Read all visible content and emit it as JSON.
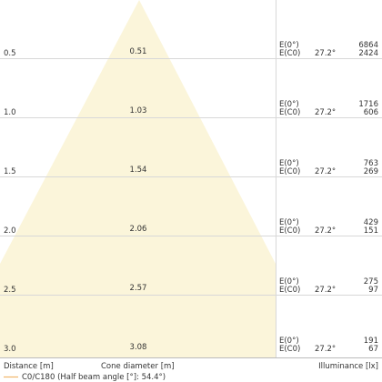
{
  "rows": [
    {
      "distance": "0.5",
      "diameter": "0.51",
      "e0_label": "E(0°)",
      "ec0_label": "E(C0)",
      "angle": "27.2°",
      "e0": "6864",
      "ec0": "2424"
    },
    {
      "distance": "1.0",
      "diameter": "1.03",
      "e0_label": "E(0°)",
      "ec0_label": "E(C0)",
      "angle": "27.2°",
      "e0": "1716",
      "ec0": "606"
    },
    {
      "distance": "1.5",
      "diameter": "1.54",
      "e0_label": "E(0°)",
      "ec0_label": "E(C0)",
      "angle": "27.2°",
      "e0": "763",
      "ec0": "269"
    },
    {
      "distance": "2.0",
      "diameter": "2.06",
      "e0_label": "E(0°)",
      "ec0_label": "E(C0)",
      "angle": "27.2°",
      "e0": "429",
      "ec0": "151"
    },
    {
      "distance": "2.5",
      "diameter": "2.57",
      "e0_label": "E(0°)",
      "ec0_label": "E(C0)",
      "angle": "27.2°",
      "e0": "275",
      "ec0": "97"
    },
    {
      "distance": "3.0",
      "diameter": "3.08",
      "e0_label": "E(0°)",
      "ec0_label": "E(C0)",
      "angle": "27.2°",
      "e0": "191",
      "ec0": "67"
    }
  ],
  "footer": {
    "distance": "Distance [m]",
    "diameter": "Cone diameter [m]",
    "illuminance": "Illuminance [lx]"
  },
  "legend": "C0/C180 (Half beam angle [°]: 54.4°)"
}
